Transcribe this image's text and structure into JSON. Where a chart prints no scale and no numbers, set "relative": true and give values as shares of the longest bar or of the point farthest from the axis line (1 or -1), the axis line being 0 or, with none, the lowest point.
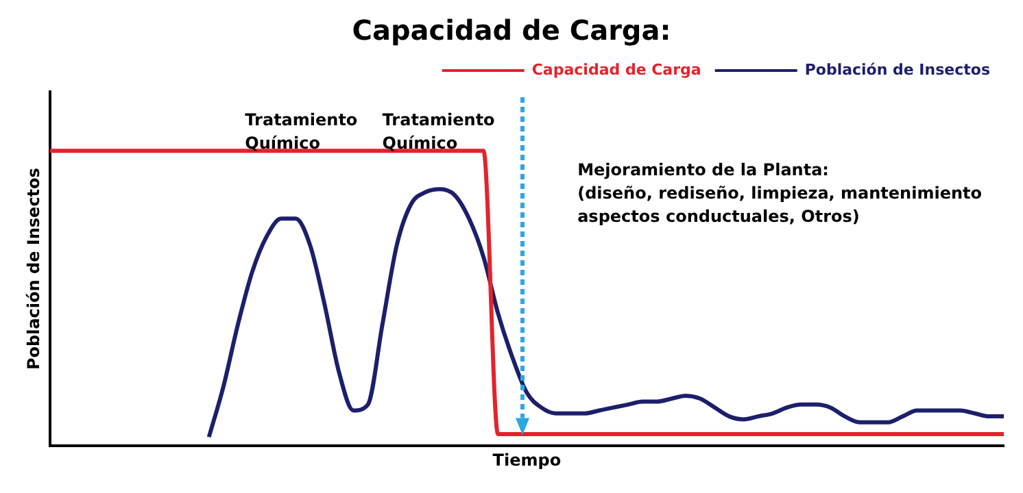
{
  "chart_data": {
    "type": "line",
    "title": "Capacidad de Carga:",
    "xlabel": "Tiempo",
    "ylabel": "Población de Insectos",
    "relative": true,
    "legend": "top right",
    "marker": "none",
    "line_style": "solid",
    "grid": false,
    "categories": [
      null,
      null,
      null,
      null,
      null,
      null,
      null,
      null,
      null,
      null,
      null,
      null,
      null,
      null,
      null,
      null,
      null,
      null,
      null,
      null,
      null,
      null,
      null,
      null,
      null,
      null,
      null,
      null,
      null,
      null,
      null,
      null,
      null,
      null,
      null,
      null,
      null,
      null,
      null,
      null,
      null,
      null,
      null,
      null,
      null,
      null,
      null,
      null,
      null,
      null,
      null,
      null,
      null,
      null,
      null,
      null,
      null,
      null,
      null,
      null,
      null,
      null,
      null,
      null,
      null,
      null,
      null
    ],
    "series": [
      {
        "name": "Capacidad de Carga",
        "color": "#e3232b",
        "values": [
          1,
          1,
          1,
          1,
          1,
          1,
          1,
          1,
          1,
          1,
          1,
          1,
          1,
          1,
          1,
          1,
          1,
          1,
          1,
          1,
          1,
          1,
          1,
          1,
          1,
          1,
          1,
          1,
          1,
          1,
          1,
          0.04,
          0.04,
          0.04,
          0.04,
          0.04,
          0.04,
          0.04,
          0.04,
          0.04,
          0.04,
          0.04,
          0.04,
          0.04,
          0.04,
          0.04,
          0.04,
          0.04,
          0.04,
          0.04,
          0.04,
          0.04,
          0.04,
          0.04,
          0.04,
          0.04,
          0.04,
          0.04,
          0.04,
          0.04,
          0.04,
          0.04,
          0.04,
          0.04,
          0.04,
          0.04,
          0.04
        ]
      },
      {
        "name": "Población de Insectos",
        "color": "#1c1f6b",
        "values": [
          null,
          null,
          null,
          null,
          null,
          null,
          null,
          null,
          null,
          null,
          null,
          0.03,
          0.2,
          0.41,
          0.59,
          0.71,
          0.77,
          0.77,
          0.68,
          0.48,
          0.25,
          0.12,
          0.14,
          0.41,
          0.68,
          0.82,
          0.86,
          0.87,
          0.85,
          0.77,
          0.64,
          0.45,
          0.3,
          0.18,
          0.13,
          0.11,
          0.11,
          0.11,
          0.12,
          0.13,
          0.14,
          0.15,
          0.15,
          0.16,
          0.17,
          0.16,
          0.13,
          0.1,
          0.09,
          0.1,
          0.11,
          0.13,
          0.14,
          0.14,
          0.13,
          0.1,
          0.08,
          0.08,
          0.08,
          0.1,
          0.12,
          0.12,
          0.12,
          0.12,
          0.11,
          0.1,
          0.1
        ]
      }
    ],
    "annotations": [
      "Tratamiento\nQuímico",
      "Tratamiento\nQuímico",
      "Mejoramiento de la Planta:\n(diseño, rediseño, limpieza, mantenimiento\naspectos conductuales, Otros)"
    ]
  }
}
